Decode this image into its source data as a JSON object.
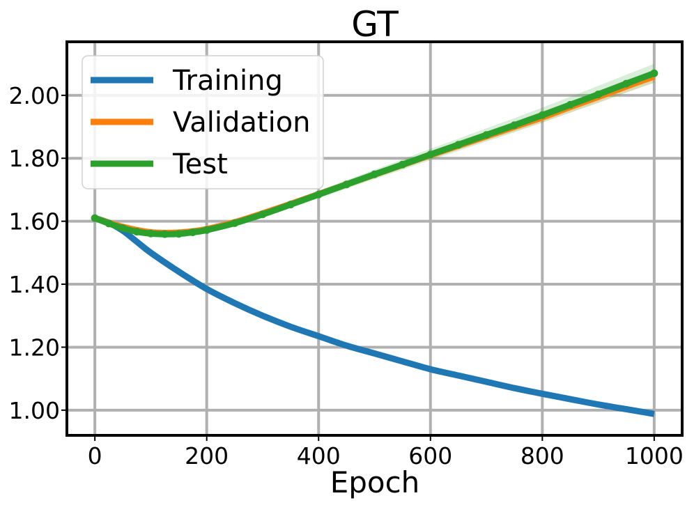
{
  "chart_data": {
    "type": "line",
    "title": "GT",
    "xlabel": "Epoch",
    "ylabel": "",
    "xlim": [
      -50,
      1050
    ],
    "ylim": [
      0.92,
      2.17
    ],
    "xticks": [
      0,
      200,
      400,
      600,
      800,
      1000
    ],
    "xtick_labels": [
      "0",
      "200",
      "400",
      "600",
      "800",
      "1000"
    ],
    "yticks": [
      1.0,
      1.2,
      1.4,
      1.6,
      1.8,
      2.0
    ],
    "ytick_labels": [
      "1.00",
      "1.20",
      "1.40",
      "1.60",
      "1.80",
      "2.00"
    ],
    "grid": true,
    "legend_position": "top-left",
    "series": [
      {
        "name": "Training",
        "color": "#1f77b4",
        "x": [
          0,
          25,
          50,
          75,
          100,
          150,
          200,
          250,
          300,
          350,
          400,
          450,
          500,
          550,
          600,
          650,
          700,
          750,
          800,
          850,
          900,
          950,
          1000
        ],
        "y": [
          1.61,
          1.595,
          1.57,
          1.535,
          1.5,
          1.44,
          1.385,
          1.34,
          1.3,
          1.265,
          1.235,
          1.205,
          1.18,
          1.155,
          1.13,
          1.11,
          1.09,
          1.07,
          1.052,
          1.035,
          1.018,
          1.003,
          0.988
        ]
      },
      {
        "name": "Validation",
        "color": "#ff7f0e",
        "band": 0.02,
        "x": [
          0,
          25,
          50,
          75,
          100,
          125,
          150,
          175,
          200,
          250,
          300,
          350,
          400,
          450,
          500,
          550,
          600,
          650,
          700,
          750,
          800,
          850,
          900,
          950,
          1000
        ],
        "y": [
          1.61,
          1.595,
          1.582,
          1.572,
          1.565,
          1.563,
          1.564,
          1.568,
          1.575,
          1.597,
          1.625,
          1.655,
          1.686,
          1.717,
          1.748,
          1.779,
          1.81,
          1.84,
          1.87,
          1.9,
          1.93,
          1.963,
          1.995,
          2.028,
          2.06
        ]
      },
      {
        "name": "Test",
        "color": "#2ca02c",
        "band": 0.03,
        "x": [
          0,
          25,
          50,
          75,
          100,
          125,
          150,
          175,
          200,
          250,
          300,
          350,
          400,
          450,
          500,
          550,
          600,
          650,
          700,
          750,
          800,
          850,
          900,
          950,
          1000
        ],
        "y": [
          1.61,
          1.593,
          1.578,
          1.567,
          1.561,
          1.559,
          1.56,
          1.565,
          1.572,
          1.594,
          1.622,
          1.653,
          1.685,
          1.717,
          1.749,
          1.78,
          1.812,
          1.843,
          1.874,
          1.905,
          1.937,
          1.97,
          2.003,
          2.037,
          2.07
        ]
      }
    ]
  }
}
